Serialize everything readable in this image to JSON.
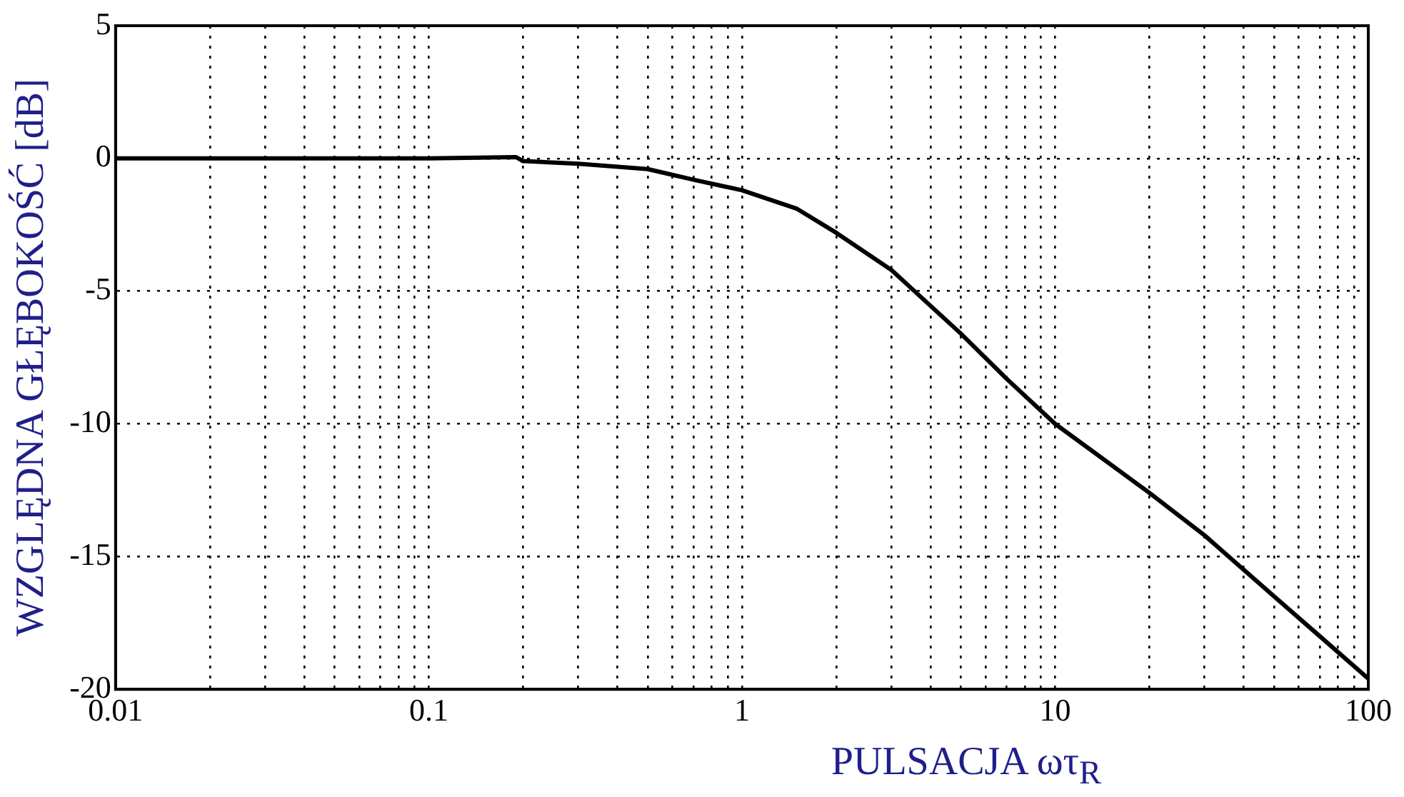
{
  "chart_data": {
    "type": "line",
    "xlabel": "PULSACJA ωτ$_{R}$",
    "ylabel": "WZGLĘDNA GŁĘBOKOŚĆ [dB]",
    "x": [
      0.01,
      0.05,
      0.1,
      0.19,
      0.2,
      0.3,
      0.5,
      0.7,
      1,
      1.5,
      2,
      3,
      5,
      7,
      10,
      20,
      30,
      50,
      70,
      100
    ],
    "series": [
      {
        "color": "#000000",
        "values": [
          0,
          0,
          0,
          0.05,
          -0.1,
          -0.2,
          -0.4,
          -0.8,
          -1.2,
          -1.9,
          -2.8,
          -4.2,
          -6.6,
          -8.3,
          -10,
          -12.6,
          -14.2,
          -16.5,
          -18,
          -19.6
        ]
      }
    ],
    "log": "x",
    "xlim": [
      0.01,
      100
    ],
    "ylim": [
      -20,
      5
    ],
    "xticks": [
      0.01,
      {
        "value": 0.02,
        "label": null
      },
      {
        "value": 0.03,
        "label": null
      },
      {
        "value": 0.04,
        "label": null
      },
      {
        "value": 0.05,
        "label": null
      },
      {
        "value": 0.06,
        "label": null
      },
      {
        "value": 0.07,
        "label": null
      },
      {
        "value": 0.08,
        "label": null
      },
      {
        "value": 0.09,
        "label": null
      },
      0.1,
      {
        "value": 0.2,
        "label": null
      },
      {
        "value": 0.3,
        "label": null
      },
      {
        "value": 0.4,
        "label": null
      },
      {
        "value": 0.5,
        "label": null
      },
      {
        "value": 0.6,
        "label": null
      },
      {
        "value": 0.7,
        "label": null
      },
      {
        "value": 0.8,
        "label": null
      },
      {
        "value": 0.9,
        "label": null
      },
      1,
      {
        "value": 2,
        "label": null
      },
      {
        "value": 3,
        "label": null
      },
      {
        "value": 4,
        "label": null
      },
      {
        "value": 5,
        "label": null
      },
      {
        "value": 6,
        "label": null
      },
      {
        "value": 7,
        "label": null
      },
      {
        "value": 8,
        "label": null
      },
      {
        "value": 9,
        "label": null
      },
      10,
      {
        "value": 20,
        "label": null
      },
      {
        "value": 30,
        "label": null
      },
      {
        "value": 40,
        "label": null
      },
      {
        "value": 50,
        "label": null
      },
      {
        "value": 60,
        "label": null
      },
      {
        "value": 70,
        "label": null
      },
      {
        "value": 80,
        "label": null
      },
      {
        "value": 90,
        "label": null
      },
      100
    ],
    "yticks": [
      -20,
      -15,
      -10,
      -5,
      0,
      5
    ],
    "grid": true,
    "legend": false,
    "marker": "none",
    "line_style": "solid"
  }
}
